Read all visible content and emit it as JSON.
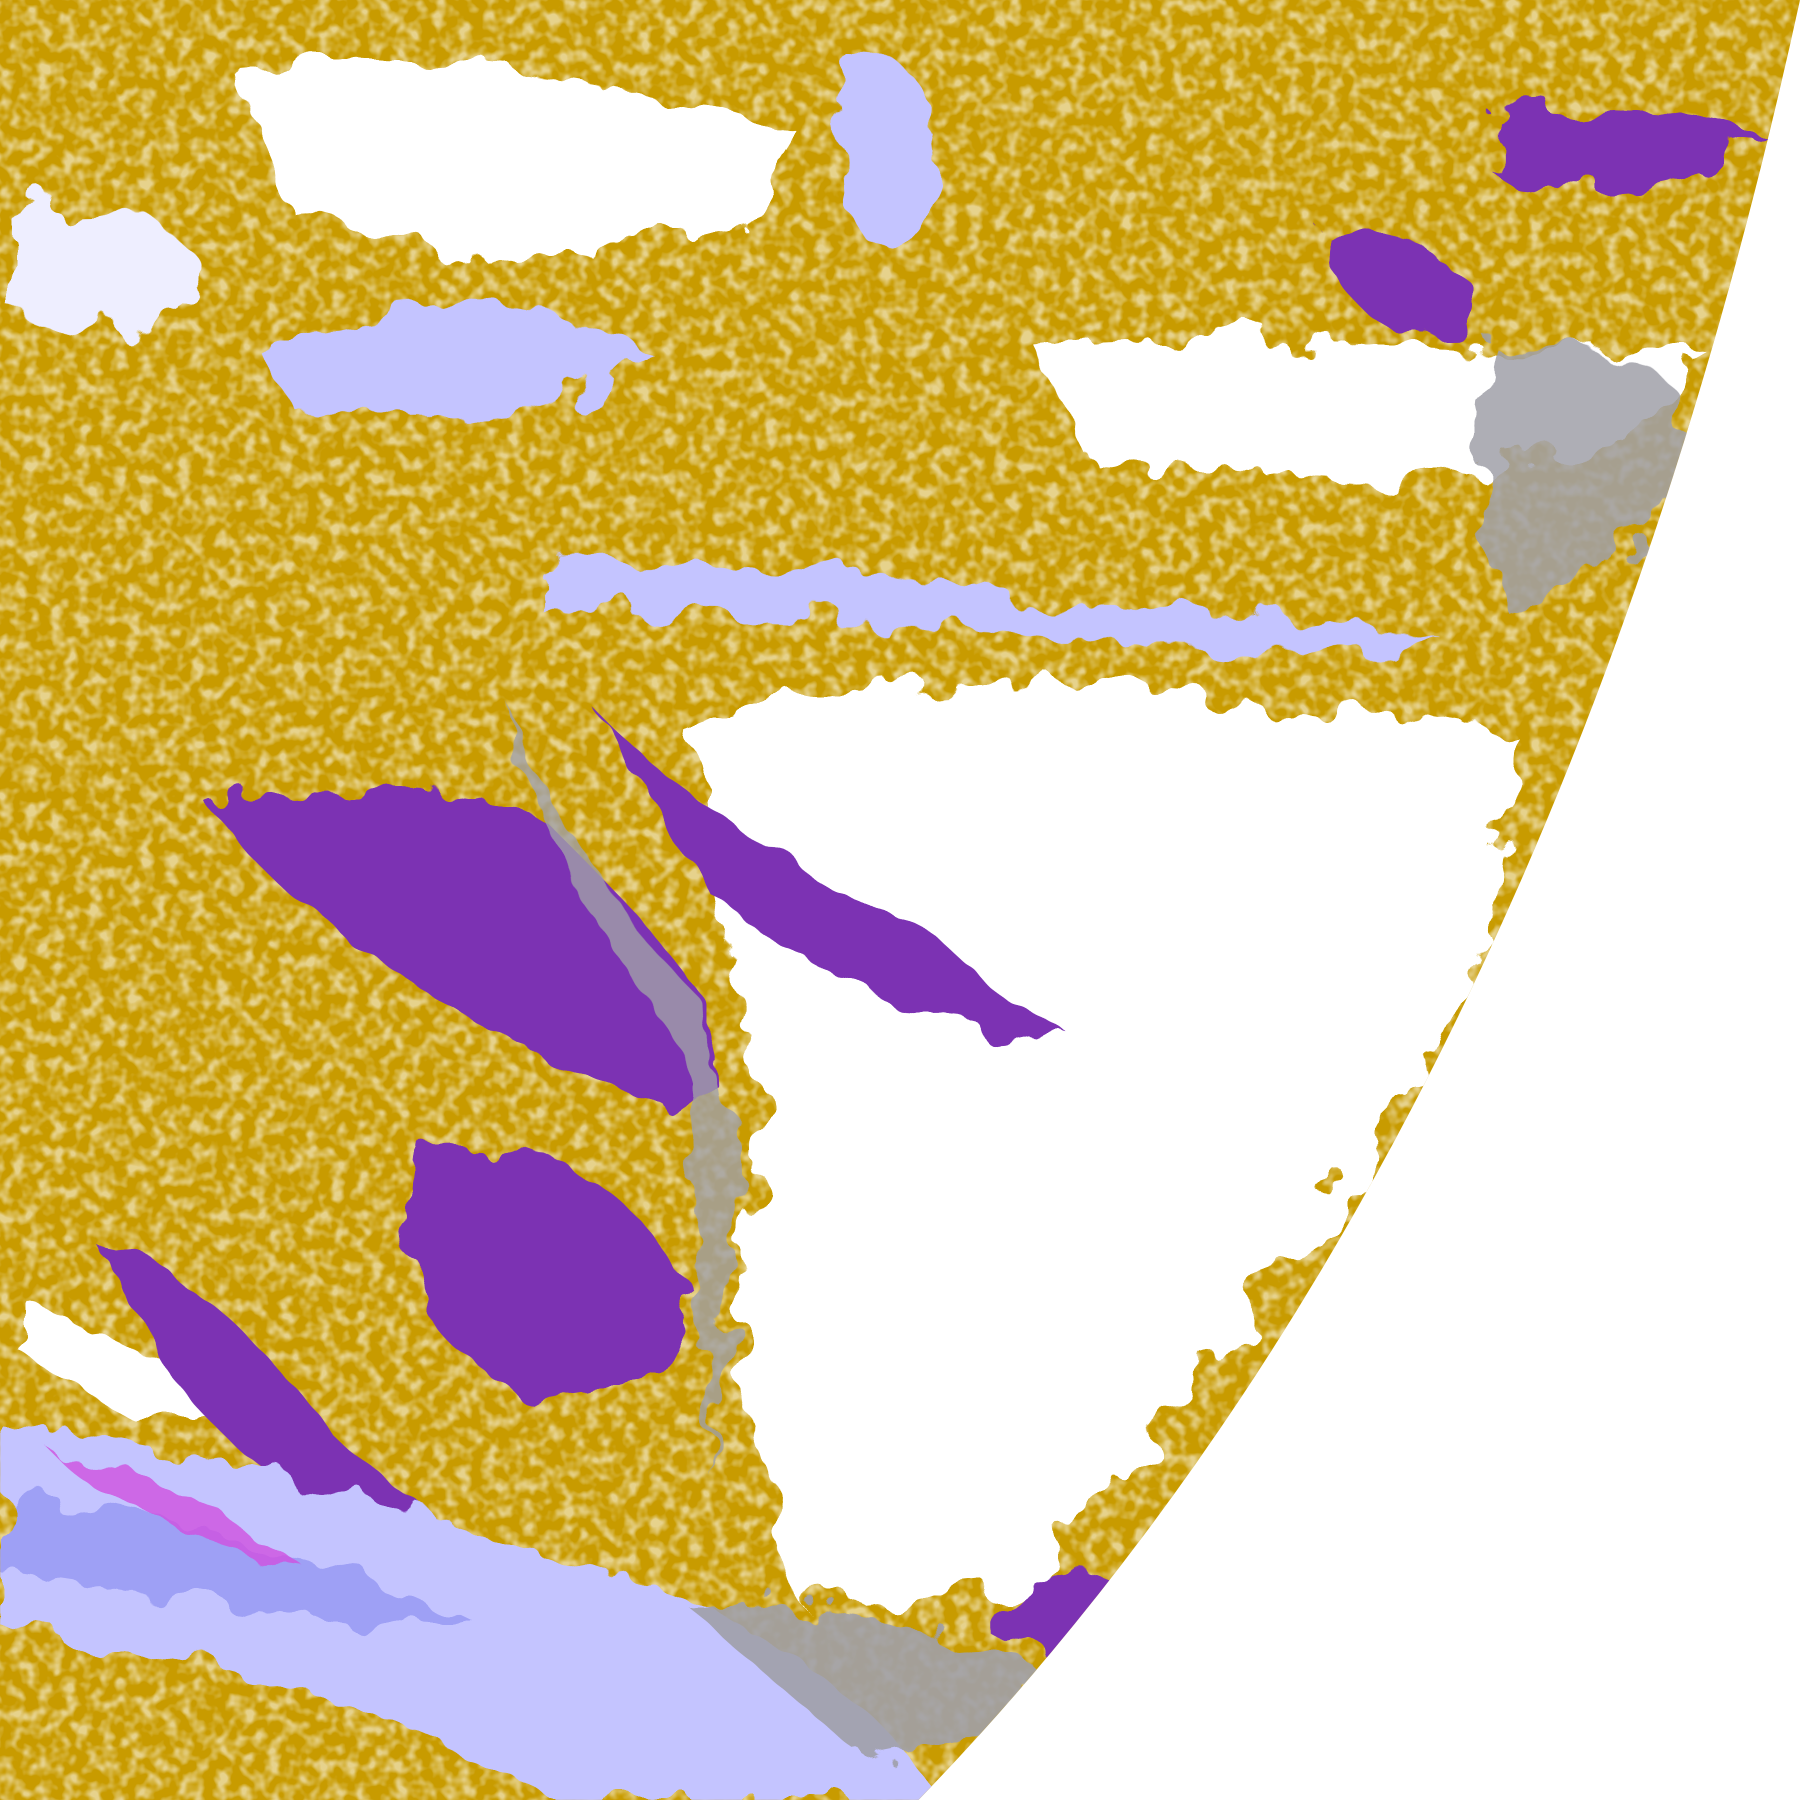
{
  "palette": {
    "background": "#ffffff",
    "gold": "#c89b00",
    "dark_gold": "#a88400",
    "purple": "#7b33b3",
    "gray": "#a0a0a8",
    "lavender": "#c4c4ff",
    "periwinkle": "#9a9cf4",
    "magenta": "#d050e0",
    "pale": "#eeeeff"
  }
}
